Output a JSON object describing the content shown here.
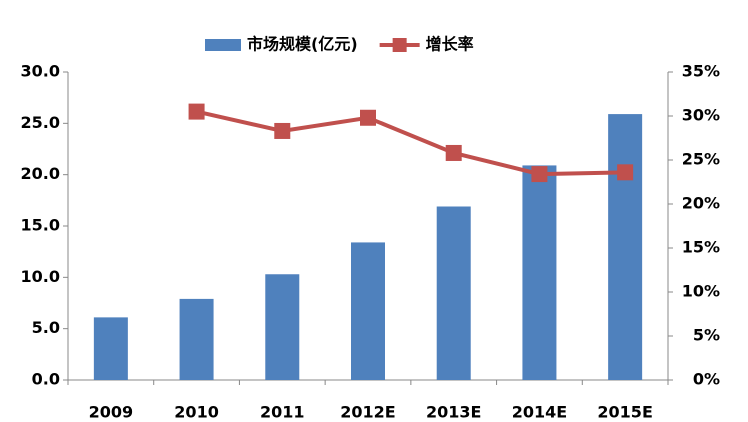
{
  "chart_data": {
    "type": "bar",
    "categories": [
      "2009",
      "2010",
      "2011",
      "2012E",
      "2013E",
      "2014E",
      "2015E"
    ],
    "series": [
      {
        "name": "市场规模(亿元)",
        "color": "#4f81bd",
        "values": [
          6.1,
          7.9,
          10.3,
          13.4,
          16.9,
          20.9,
          25.9
        ]
      },
      {
        "name": "增长率",
        "color": "#c0504d",
        "type": "line",
        "axis": "y2",
        "values": [
          null,
          30.5,
          28.3,
          29.8,
          25.8,
          23.4,
          23.6
        ]
      }
    ],
    "ylim": [
      0,
      30
    ],
    "yticks": [
      {
        "value": 0,
        "label": "0.0"
      },
      {
        "value": 5,
        "label": "5.0"
      },
      {
        "value": 10,
        "label": "10.0"
      },
      {
        "value": 15,
        "label": "15.0"
      },
      {
        "value": 20,
        "label": "20.0"
      },
      {
        "value": 25,
        "label": "25.0"
      },
      {
        "value": 30,
        "label": "30.0"
      }
    ],
    "y2lim": [
      0,
      35
    ],
    "y2ticks": [
      {
        "value": 0,
        "label": "0%"
      },
      {
        "value": 5,
        "label": "5%"
      },
      {
        "value": 10,
        "label": "10%"
      },
      {
        "value": 15,
        "label": "15%"
      },
      {
        "value": 20,
        "label": "20%"
      },
      {
        "value": 25,
        "label": "25%"
      },
      {
        "value": 30,
        "label": "30%"
      },
      {
        "value": 35,
        "label": "35%"
      }
    ],
    "legend": "top"
  }
}
